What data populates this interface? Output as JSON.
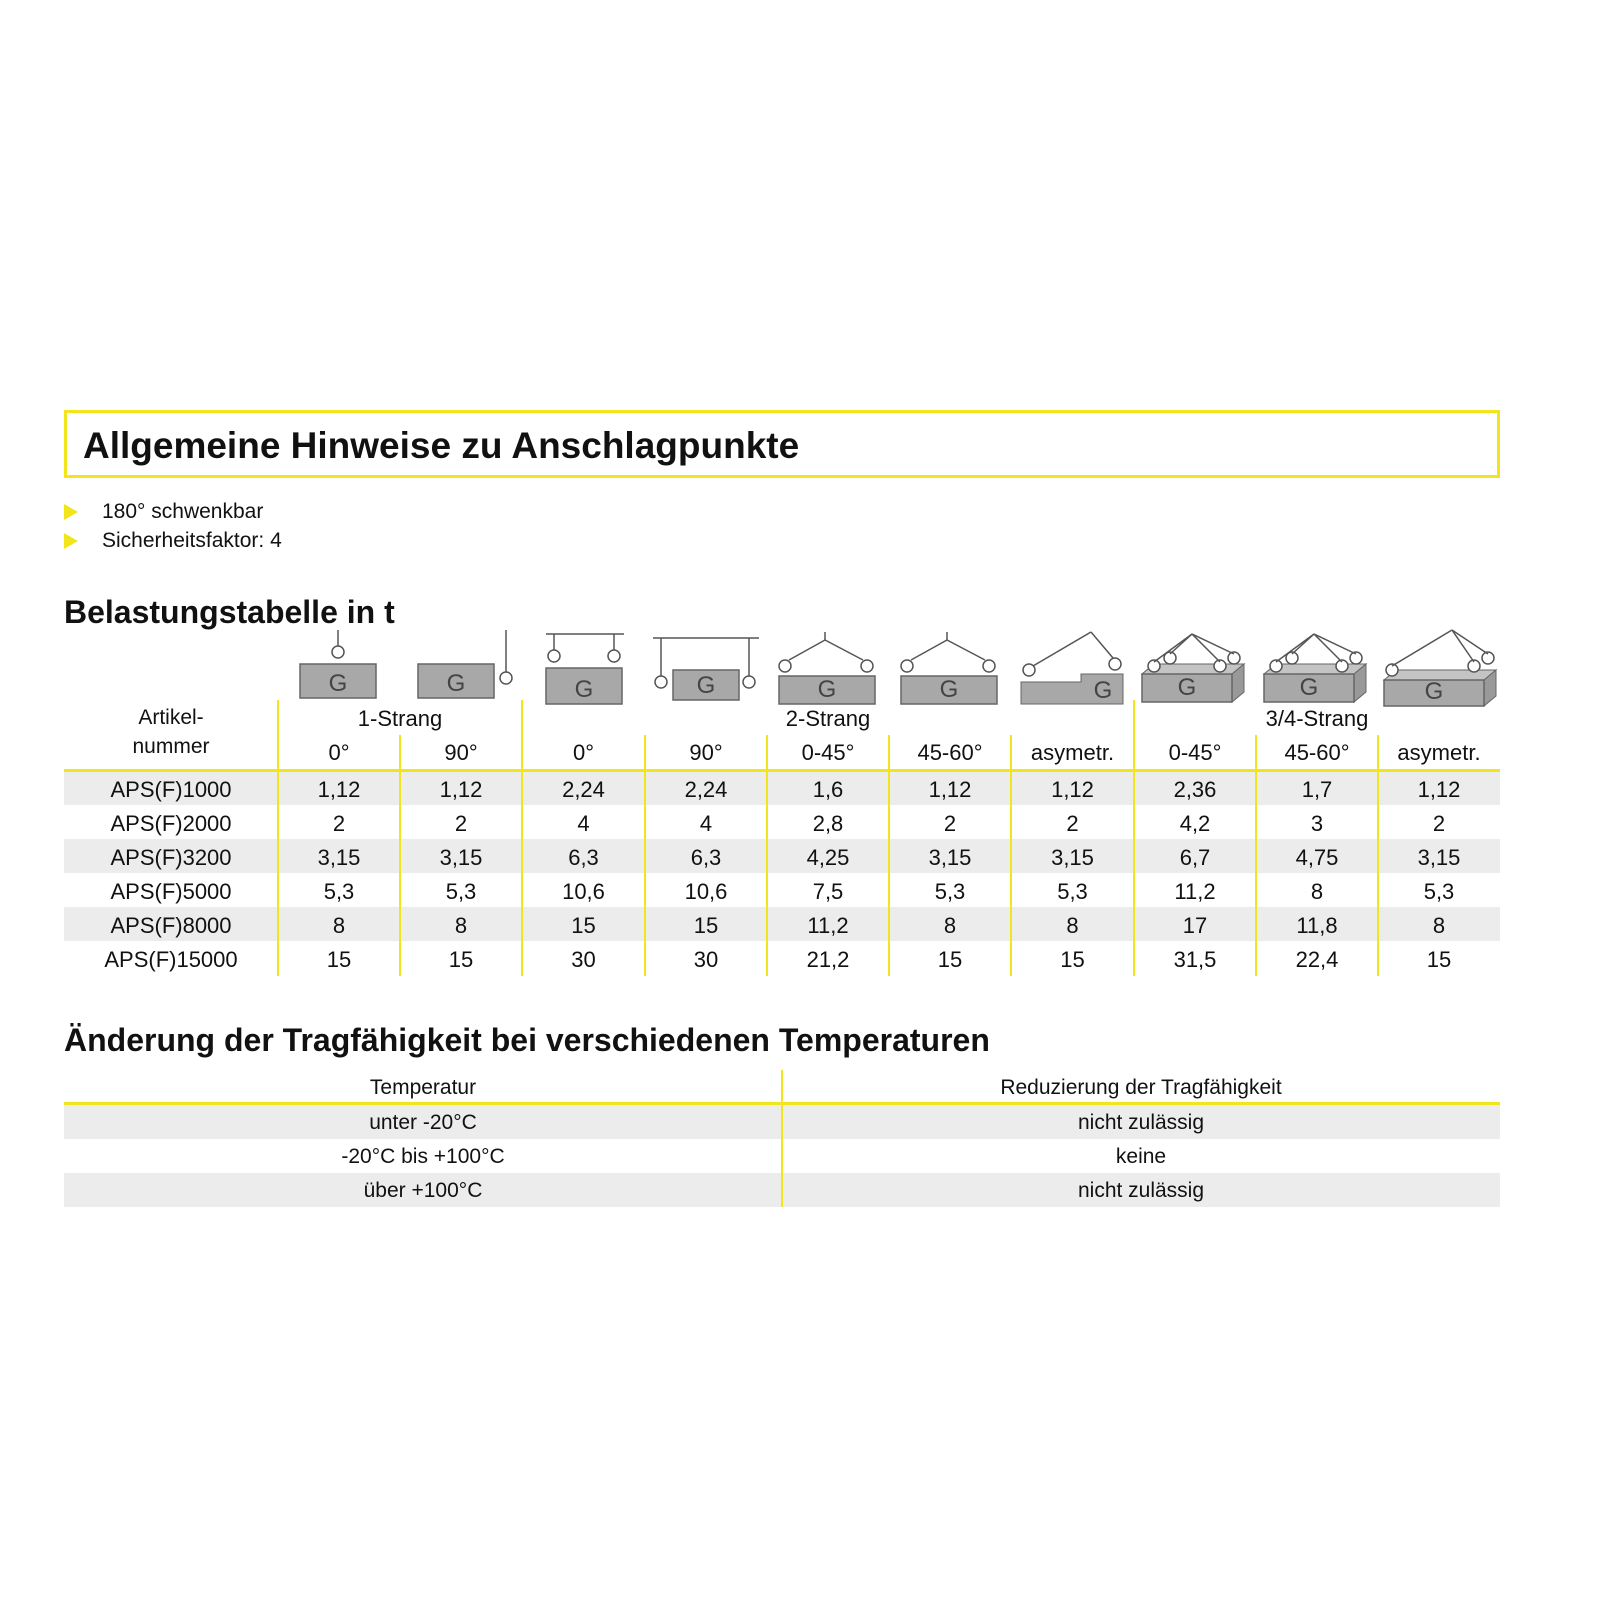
{
  "title": "Allgemeine Hinweise zu Anschlagpunkte",
  "bullets": [
    "180° schwenkbar",
    "Sicherheitsfaktor: 4"
  ],
  "load_table": {
    "heading": "Belastungstabelle in t",
    "article_header": [
      "Artikel-",
      "nummer"
    ],
    "groups": [
      "1-Strang",
      "2-Strang",
      "3/4-Strang"
    ],
    "columns": [
      "0°",
      "90°",
      "0°",
      "90°",
      "0-45°",
      "45-60°",
      "asymetr.",
      "0-45°",
      "45-60°",
      "asymetr."
    ],
    "icons": [
      "single-vertical",
      "single-side",
      "double-beam-top",
      "double-beam-side",
      "double-45",
      "double-60",
      "double-asym",
      "multi-45",
      "multi-60",
      "multi-asym"
    ],
    "rows": [
      [
        "APS(F)1000",
        "1,12",
        "1,12",
        "2,24",
        "2,24",
        "1,6",
        "1,12",
        "1,12",
        "2,36",
        "1,7",
        "1,12"
      ],
      [
        "APS(F)2000",
        "2",
        "2",
        "4",
        "4",
        "2,8",
        "2",
        "2",
        "4,2",
        "3",
        "2"
      ],
      [
        "APS(F)3200",
        "3,15",
        "3,15",
        "6,3",
        "6,3",
        "4,25",
        "3,15",
        "3,15",
        "6,7",
        "4,75",
        "3,15"
      ],
      [
        "APS(F)5000",
        "5,3",
        "5,3",
        "10,6",
        "10,6",
        "7,5",
        "5,3",
        "5,3",
        "11,2",
        "8",
        "5,3"
      ],
      [
        "APS(F)8000",
        "8",
        "8",
        "15",
        "15",
        "11,2",
        "8",
        "8",
        "17",
        "11,8",
        "8"
      ],
      [
        "APS(F)15000",
        "15",
        "15",
        "30",
        "30",
        "21,2",
        "15",
        "15",
        "31,5",
        "22,4",
        "15"
      ]
    ]
  },
  "temp_table": {
    "heading": "Änderung der Tragfähigkeit bei verschiedenen Temperaturen",
    "headers": [
      "Temperatur",
      "Reduzierung der Tragfähigkeit"
    ],
    "rows": [
      [
        "unter -20°C",
        "nicht zulässig"
      ],
      [
        "-20°C bis +100°C",
        "keine"
      ],
      [
        "über +100°C",
        "nicht zulässig"
      ]
    ]
  },
  "colors": {
    "accent": "#f2e51c",
    "row_stripe": "#ececec",
    "icon_fill": "#a8a8a8"
  }
}
